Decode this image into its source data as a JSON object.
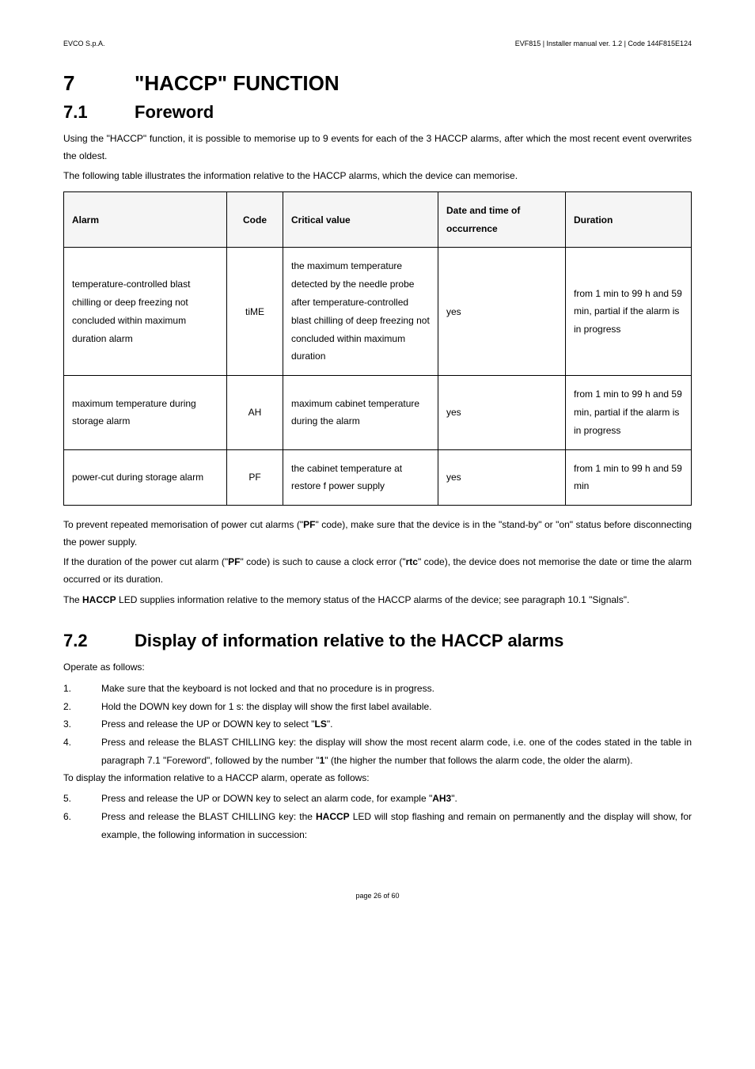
{
  "header": {
    "left": "EVCO S.p.A.",
    "right": "EVF815 | Installer manual ver. 1.2 | Code 144F815E124"
  },
  "h1": {
    "num": "7",
    "title": "\"HACCP\" FUNCTION"
  },
  "s71": {
    "num": "7.1",
    "title": "Foreword",
    "p1": "Using the \"HACCP\" function, it is possible to memorise up to 9 events for each of the 3 HACCP alarms, after which the most recent event overwrites the oldest.",
    "p2": "The following table illustrates the information relative to the HACCP alarms, which the device can memorise."
  },
  "table": {
    "headers": {
      "alarm": "Alarm",
      "code": "Code",
      "critical": "Critical value",
      "datetime": "Date and time of occurrence",
      "duration": "Duration"
    },
    "rows": [
      {
        "alarm": "temperature-controlled blast chilling or deep freezing not concluded within maximum duration alarm",
        "code": "tiME",
        "critical": "the maximum temperature detected by the needle probe after temperature-controlled blast chilling of deep freezing not concluded within maximum duration",
        "datetime": "yes",
        "duration": "from 1 min to 99 h and 59 min, partial if the alarm is in progress"
      },
      {
        "alarm": "maximum temperature during storage alarm",
        "code": "AH",
        "critical": "maximum cabinet temperature during the alarm",
        "datetime": "yes",
        "duration": "from 1 min to 99 h and 59 min, partial if the alarm is in progress"
      },
      {
        "alarm": "power-cut during storage alarm",
        "code": "PF",
        "critical": "the cabinet temperature at restore f power supply",
        "datetime": "yes",
        "duration": "from 1 min to 99 h and 59 min"
      }
    ]
  },
  "after": {
    "p1a": "To prevent repeated memorisation of power cut alarms (\"",
    "p1b": "PF",
    "p1c": "\" code), make sure that the device is in the \"stand-by\" or \"on\" status before disconnecting the power supply.",
    "p2a": "If the duration of the power cut alarm (\"",
    "p2b": "PF",
    "p2c": "\" code) is such to cause a clock error (\"",
    "p2d": "rtc",
    "p2e": "\" code), the device does not memorise the date or time the alarm occurred or its duration.",
    "p3a": "The ",
    "p3b": "HACCP",
    "p3c": " LED supplies information relative to the memory status of the HACCP alarms of the device; see paragraph 10.1 \"Signals\"."
  },
  "s72": {
    "num": "7.2",
    "title": "Display of information relative to the HACCP alarms",
    "intro": "Operate as follows:",
    "steps1": [
      {
        "n": "1.",
        "t": "Make sure that the keyboard is not locked and that no procedure is in progress."
      },
      {
        "n": "2.",
        "t": "Hold the DOWN key down for 1 s: the display will show the first label available."
      }
    ],
    "step3": {
      "n": "3.",
      "pre": "Press and release the UP or DOWN key to select \"",
      "b": "LS",
      "post": "\"."
    },
    "step4": {
      "n": "4.",
      "pre": "Press and release the BLAST CHILLING key: the display will show the most recent alarm code, i.e. one of the codes stated in the table in paragraph 7.1 \"Foreword\", followed by the number \"",
      "b": "1",
      "post": "\" (the higher the number that follows the alarm code, the older the alarm)."
    },
    "mid": "To display the information relative to a HACCP alarm, operate as follows:",
    "step5": {
      "n": "5.",
      "pre": "Press and release the UP or DOWN key to select an alarm code, for example \"",
      "b": "AH3",
      "post": "\"."
    },
    "step6": {
      "n": "6.",
      "pre": "Press and release the BLAST CHILLING key: the ",
      "b": "HACCP",
      "post": " LED will stop flashing and remain on permanently and the display will show, for example, the following information in succession:"
    }
  },
  "footer": "page 26 of 60"
}
